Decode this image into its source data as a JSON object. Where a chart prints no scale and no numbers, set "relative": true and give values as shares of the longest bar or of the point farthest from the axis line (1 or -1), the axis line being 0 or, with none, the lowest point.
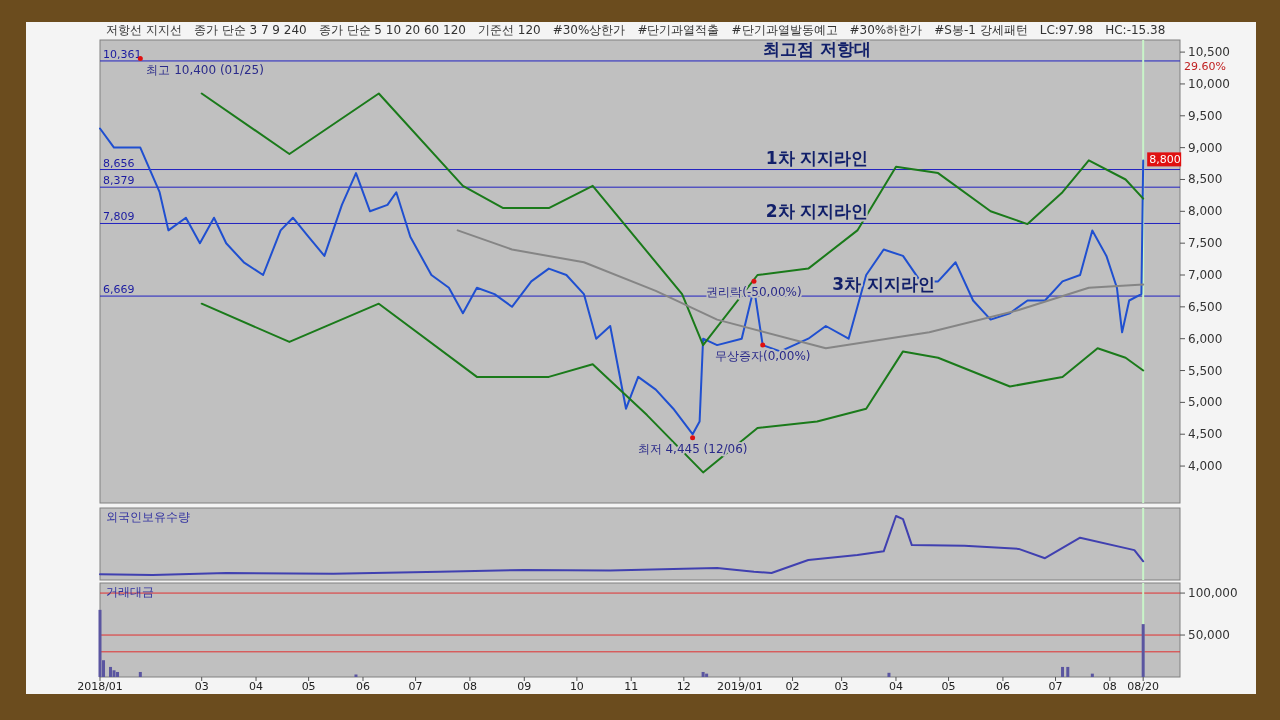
{
  "chart_data": [
    {
      "type": "line",
      "xlim": [
        "2018-01-02",
        "2019-09-10"
      ],
      "ylim": [
        3420,
        10690
      ],
      "yticks": [
        {
          "value": 4000,
          "label": "4,000"
        },
        {
          "value": 4500,
          "label": "4,500"
        },
        {
          "value": 5000,
          "label": "5,000"
        },
        {
          "value": 5500,
          "label": "5,500"
        },
        {
          "value": 6000,
          "label": "6,000"
        },
        {
          "value": 6500,
          "label": "6,500"
        },
        {
          "value": 7000,
          "label": "7,000"
        },
        {
          "value": 7500,
          "label": "7,500"
        },
        {
          "value": 8000,
          "label": "8,000"
        },
        {
          "value": 8500,
          "label": "8,500"
        },
        {
          "value": 9000,
          "label": "9,000"
        },
        {
          "value": 9500,
          "label": "9,500"
        },
        {
          "value": 10000,
          "label": "10,000"
        },
        {
          "value": 10500,
          "label": "10,500"
        }
      ],
      "tick_labels": "y",
      "series": [
        {
          "color": "#1f4fd0",
          "x": [
            "2018-01-02",
            "2018-01-10",
            "2018-01-25",
            "2018-02-05",
            "2018-02-10",
            "2018-02-20",
            "2018-02-28",
            "2018-03-08",
            "2018-03-15",
            "2018-03-25",
            "2018-04-05",
            "2018-04-15",
            "2018-04-22",
            "2018-05-01",
            "2018-05-10",
            "2018-05-20",
            "2018-05-28",
            "2018-06-05",
            "2018-06-15",
            "2018-06-20",
            "2018-06-28",
            "2018-07-10",
            "2018-07-20",
            "2018-07-28",
            "2018-08-05",
            "2018-08-15",
            "2018-08-25",
            "2018-09-05",
            "2018-09-15",
            "2018-09-25",
            "2018-10-05",
            "2018-10-12",
            "2018-10-20",
            "2018-10-29",
            "2018-11-05",
            "2018-11-15",
            "2018-11-25",
            "2018-12-06",
            "2018-12-10",
            "2018-12-12",
            "2018-12-20",
            "2019-01-03",
            "2019-01-10",
            "2019-01-15",
            "2019-01-25",
            "2019-02-10",
            "2019-02-20",
            "2019-03-05",
            "2019-03-15",
            "2019-03-25",
            "2019-04-05",
            "2019-04-15",
            "2019-04-25",
            "2019-05-05",
            "2019-05-15",
            "2019-05-25",
            "2019-06-05",
            "2019-06-15",
            "2019-06-25",
            "2019-07-05",
            "2019-07-15",
            "2019-07-22",
            "2019-07-30",
            "2019-08-05",
            "2019-08-08",
            "2019-08-12",
            "2019-08-19",
            "2019-08-20"
          ],
          "values": [
            9300,
            9000,
            9000,
            8300,
            7700,
            7900,
            7500,
            7900,
            7500,
            7200,
            7000,
            7700,
            7900,
            7600,
            7300,
            8100,
            8600,
            8000,
            8100,
            8300,
            7600,
            7000,
            6800,
            6400,
            6800,
            6700,
            6500,
            6900,
            7100,
            7000,
            6700,
            6000,
            6200,
            4900,
            5400,
            5200,
            4900,
            4500,
            4700,
            6000,
            5900,
            6000,
            6800,
            5900,
            5800,
            6000,
            6200,
            6000,
            7000,
            7400,
            7300,
            6900,
            6900,
            7200,
            6600,
            6300,
            6400,
            6600,
            6600,
            6900,
            7000,
            7700,
            7300,
            6800,
            6100,
            6600,
            6700,
            8800
          ],
          "value_labels": [
            null,
            null,
            null,
            null,
            null,
            null,
            null,
            null,
            null,
            null,
            null,
            null,
            null,
            null,
            null,
            null,
            null,
            null,
            null,
            null,
            null,
            null,
            null,
            null,
            null,
            null,
            null,
            null,
            null,
            null,
            null,
            null,
            null,
            null,
            null,
            null,
            null,
            null,
            null,
            null,
            null,
            null,
            null,
            null,
            null,
            null,
            null,
            null,
            null,
            null,
            null,
            null,
            null,
            null,
            null,
            null,
            null,
            null,
            null,
            null,
            null,
            null,
            null,
            null,
            null,
            null,
            null,
            "8,800"
          ]
        },
        {
          "color": "#1a7a1a",
          "x": [
            "2018-03-01",
            "2018-04-20",
            "2018-06-10",
            "2018-07-28",
            "2018-08-20",
            "2018-09-15",
            "2018-10-10",
            "2018-11-30",
            "2018-12-12",
            "2019-01-12",
            "2019-02-10",
            "2019-03-10",
            "2019-04-01",
            "2019-04-25",
            "2019-05-25",
            "2019-06-15",
            "2019-07-05",
            "2019-07-20",
            "2019-08-10",
            "2019-08-20"
          ],
          "values": [
            9850,
            8900,
            9850,
            8400,
            8050,
            8050,
            8400,
            6700,
            5900,
            7000,
            7100,
            7700,
            8700,
            8600,
            8000,
            7800,
            8300,
            8800,
            8500,
            8200
          ]
        },
        {
          "color": "#1a7a1a",
          "x": [
            "2018-03-01",
            "2018-04-20",
            "2018-06-10",
            "2018-08-05",
            "2018-09-15",
            "2018-10-10",
            "2018-11-10",
            "2018-12-12",
            "2019-01-12",
            "2019-02-15",
            "2019-03-15",
            "2019-04-05",
            "2019-04-25",
            "2019-06-05",
            "2019-07-05",
            "2019-07-25",
            "2019-08-10",
            "2019-08-20"
          ],
          "values": [
            6550,
            5950,
            6550,
            5400,
            5400,
            5600,
            4800,
            3900,
            4600,
            4700,
            4900,
            5800,
            5700,
            5250,
            5400,
            5850,
            5700,
            5500
          ]
        },
        {
          "color": "#858585",
          "x": [
            "2018-07-25",
            "2018-08-25",
            "2018-10-05",
            "2018-11-15",
            "2018-12-20",
            "2019-02-20",
            "2019-04-20",
            "2019-06-10",
            "2019-07-20",
            "2019-08-20"
          ],
          "values": [
            7700,
            7400,
            7200,
            6750,
            6300,
            5850,
            6100,
            6450,
            6800,
            6850
          ]
        }
      ],
      "ref_lines": [
        {
          "axis": "y",
          "value": 10361,
          "label": "10,361",
          "color": "#2020c0"
        },
        {
          "axis": "y",
          "value": 8656,
          "label": "8,656",
          "color": "#2020c0"
        },
        {
          "axis": "y",
          "value": 8379,
          "label": "8,379",
          "color": "#2020c0"
        },
        {
          "axis": "y",
          "value": 7809,
          "label": "7,809",
          "color": "#2020c0"
        },
        {
          "axis": "y",
          "value": 6669,
          "label": "6,669",
          "color": "#2020c0"
        },
        {
          "axis": "x",
          "value": "2019-08-20",
          "color": "#c8f5c8"
        }
      ],
      "annotations": [
        "저항선 지지선",
        "종가 단순 3 7 9 240",
        "종가 단순 5 10 20 60 120",
        "기준선 120",
        "#30%상한가",
        "#단기과열적출",
        "#단기과열발동예고",
        "#30%하한가",
        "#S봉-1 강세패턴",
        "LC:97.98",
        "HC:-15.38",
        "29.60%",
        {
          "text": "최고 10,400 (01/25)",
          "x": "2018-01-25",
          "y": 10400
        },
        {
          "text": "최저 4,445 (12/06)",
          "x": "2018-12-06",
          "y": 4445
        },
        {
          "text": "권리락(-50,00%)",
          "x": "2019-01-10",
          "y": 6900
        },
        {
          "text": "무상증자(0,00%)",
          "x": "2019-01-15",
          "y": 5900
        },
        {
          "text": "최고점 저항대",
          "x": "2019-02-15",
          "y": 10361
        },
        {
          "text": "1차 지지라인",
          "x": "2019-02-15",
          "y": 8656
        },
        {
          "text": "2차 지지라인",
          "x": "2019-02-15",
          "y": 7809
        },
        {
          "text": "3차 지지라인",
          "x": "2019-03-25",
          "y": 6669
        }
      ]
    },
    {
      "type": "line",
      "title": "외국인보유수량",
      "relative": true,
      "tick_labels": false,
      "xlim": [
        "2018-01-02",
        "2019-09-10"
      ],
      "series": [
        {
          "color": "#4040b0",
          "x": [
            "2018-01-02",
            "2018-02-01",
            "2018-03-15",
            "2018-05-15",
            "2018-07-15",
            "2018-09-01",
            "2018-10-20",
            "2018-12-01",
            "2018-12-20",
            "2019-01-10",
            "2019-01-20",
            "2019-02-10",
            "2019-03-10",
            "2019-03-25",
            "2019-04-01",
            "2019-04-05",
            "2019-04-10",
            "2019-05-10",
            "2019-06-10",
            "2019-06-25",
            "2019-07-15",
            "2019-08-15",
            "2019-08-20"
          ],
          "values": [
            0.06,
            0.05,
            0.08,
            0.07,
            0.1,
            0.13,
            0.12,
            0.15,
            0.16,
            0.1,
            0.08,
            0.29,
            0.37,
            0.43,
            1.0,
            0.95,
            0.53,
            0.52,
            0.47,
            0.32,
            0.65,
            0.45,
            0.27
          ]
        }
      ],
      "ref_lines": [
        {
          "axis": "x",
          "value": "2019-08-20",
          "color": "#c8f5c8"
        }
      ]
    },
    {
      "type": "bar",
      "title": "거래대금",
      "xlim": [
        "2018-01-02",
        "2019-09-10"
      ],
      "ylim": [
        0,
        112000
      ],
      "yticks": [
        {
          "value": 50000,
          "label": "50,000"
        },
        {
          "value": 100000,
          "label": "100,000"
        }
      ],
      "xticks": [
        {
          "value": "2018-01-02",
          "label": "2018/01"
        },
        {
          "value": "2018-03-01",
          "label": "03"
        },
        {
          "value": "2018-04-01",
          "label": "04"
        },
        {
          "value": "2018-05-01",
          "label": "05"
        },
        {
          "value": "2018-06-01",
          "label": "06"
        },
        {
          "value": "2018-07-01",
          "label": "07"
        },
        {
          "value": "2018-08-01",
          "label": "08"
        },
        {
          "value": "2018-09-01",
          "label": "09"
        },
        {
          "value": "2018-10-01",
          "label": "10"
        },
        {
          "value": "2018-11-01",
          "label": "11"
        },
        {
          "value": "2018-12-01",
          "label": "12"
        },
        {
          "value": "2019-01-02",
          "label": "2019/01"
        },
        {
          "value": "2019-02-01",
          "label": "02"
        },
        {
          "value": "2019-03-01",
          "label": "03"
        },
        {
          "value": "2019-04-01",
          "label": "04"
        },
        {
          "value": "2019-05-01",
          "label": "05"
        },
        {
          "value": "2019-06-01",
          "label": "06"
        },
        {
          "value": "2019-07-01",
          "label": "07"
        },
        {
          "value": "2019-08-01",
          "label": "08"
        },
        {
          "value": "2019-08-20",
          "label": "08/20"
        }
      ],
      "series": [
        {
          "color": "#5a55a0",
          "x": [
            "2018-01-02",
            "2018-01-04",
            "2018-01-08",
            "2018-01-10",
            "2018-01-12",
            "2018-01-25",
            "2018-05-28",
            "2018-12-12",
            "2018-12-14",
            "2019-03-28",
            "2019-07-05",
            "2019-07-08",
            "2019-07-22",
            "2019-08-20"
          ],
          "values": [
            80000,
            20000,
            12000,
            8000,
            6000,
            6000,
            3000,
            6000,
            4000,
            5000,
            12000,
            12000,
            4000,
            63000
          ]
        }
      ],
      "ref_lines": [
        {
          "axis": "y",
          "value": 100000,
          "color": "#e03030"
        },
        {
          "axis": "y",
          "value": 50000,
          "color": "#e03030"
        },
        {
          "axis": "y",
          "value": 30000,
          "color": "#e03030"
        },
        {
          "axis": "x",
          "value": "2019-08-20",
          "color": "#c8f5c8"
        }
      ]
    }
  ]
}
